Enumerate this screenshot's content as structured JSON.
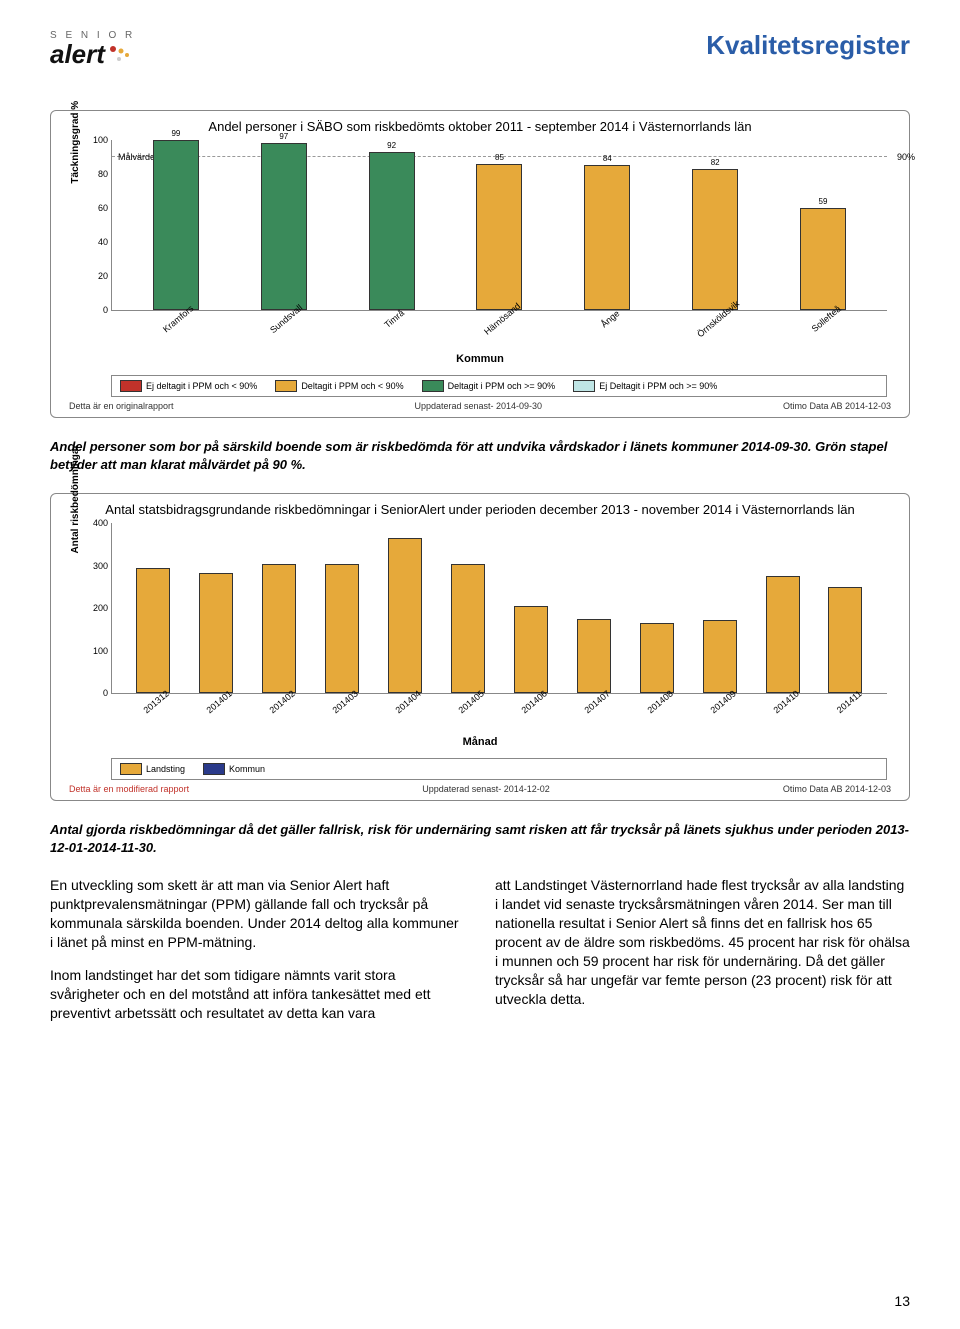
{
  "header": {
    "logo_small": "S E N I O R",
    "logo_main": "alert",
    "page_title": "Kvalitetsregister",
    "title_color": "#2a5da8"
  },
  "chart1": {
    "title": "Andel personer i SÄBO som riskbedömts  oktober 2011 - september 2014 i Västernorrlands län",
    "y_label": "Täckningsgrad %",
    "y_ticks": [
      0,
      20,
      40,
      60,
      80,
      100
    ],
    "ymax": 100,
    "reference_line": {
      "value": 90,
      "label": "90%"
    },
    "mal_label": "Målvärde",
    "categories": [
      "Kramfors",
      "Sundsvall",
      "Timrå",
      "Härnösand",
      "Ånge",
      "Örnsköldsvik",
      "Sollefteå"
    ],
    "values": [
      99,
      97,
      92,
      85,
      84,
      82,
      59
    ],
    "bar_colors": [
      "#3a8a5a",
      "#3a8a5a",
      "#3a8a5a",
      "#e6a93a",
      "#e6a93a",
      "#e6a93a",
      "#e6a93a"
    ],
    "x_axis_title": "Kommun",
    "legend": [
      {
        "label": "Ej deltagit i PPM och < 90%",
        "color": "#c1322a"
      },
      {
        "label": "Deltagit i PPM och < 90%",
        "color": "#e6a93a"
      },
      {
        "label": "Deltagit i PPM och >= 90%",
        "color": "#3a8a5a"
      },
      {
        "label": "Ej Deltagit i PPM och >= 90%",
        "color": "#bfe5e5"
      }
    ],
    "footer_left": "Detta är en originalrapport",
    "footer_center": "Uppdaterad senast- 2014-09-30",
    "footer_right": "Otimo Data AB 2014-12-03"
  },
  "caption1": "Andel personer som bor på särskild boende som är riskbedömda för att undvika vårdskador i länets kommuner 2014-09-30. Grön stapel betyder att man klarat målvärdet på 90 %.",
  "chart2": {
    "title": "Antal statsbidragsgrundande riskbedömningar i SeniorAlert under perioden december 2013 - november 2014 i   Västernorrlands län",
    "y_label": "Antal riskbedömningar",
    "y_ticks": [
      0,
      100,
      200,
      300,
      400
    ],
    "ymax": 400,
    "categories": [
      "201312",
      "201401",
      "201402",
      "201403",
      "201404",
      "201405",
      "201406",
      "201407",
      "201408",
      "201409",
      "201410",
      "201411"
    ],
    "values": [
      290,
      278,
      300,
      298,
      360,
      298,
      200,
      170,
      160,
      168,
      272,
      245
    ],
    "bar_color": "#e6a93a",
    "x_axis_title": "Månad",
    "legend": [
      {
        "label": "Landsting",
        "color": "#e6a93a"
      },
      {
        "label": "Kommun",
        "color": "#2a3a8a"
      }
    ],
    "footer_left": "Detta är en modifierad rapport",
    "footer_center": "Uppdaterad senast- 2014-12-02",
    "footer_right": "Otimo Data AB 2014-12-03",
    "footer_left_color": "#c1322a"
  },
  "caption2": "Antal gjorda riskbedömningar då det gäller fallrisk, risk för undernäring samt risken att får trycksår på länets sjukhus under perioden 2013-12-01-2014-11-30.",
  "body": {
    "left_p1": "En utveckling som skett är att man via Senior Alert haft punktprevalensmätningar (PPM) gällande fall och trycksår på kommunala särskilda boenden. Under 2014 deltog alla kommuner i länet på minst en PPM-mätning.",
    "left_p2": "Inom landstinget har det som tidigare nämnts varit stora svårigheter och en del motstånd att införa tankesättet med ett preventivt arbetssätt och resultatet av detta kan vara",
    "right_p1": "att Landstinget Västernorrland hade flest trycksår av alla landsting i landet vid senaste trycksårsmätningen våren 2014. Ser man till nationella resultat i Senior Alert så finns det en fallrisk hos 65 procent av de äldre som riskbedöms. 45 procent har risk för ohälsa i munnen och 59 procent har risk för undernäring. Då det gäller trycksår så har ungefär var femte person (23 procent) risk för att utveckla detta."
  },
  "page_number": "13"
}
